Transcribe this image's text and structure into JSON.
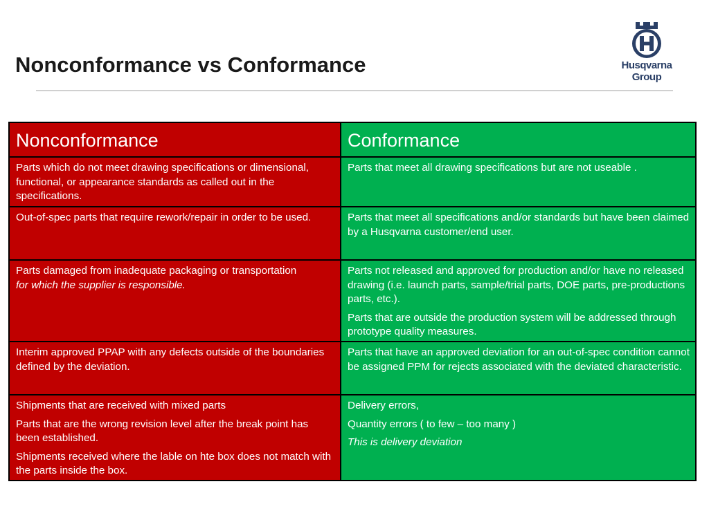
{
  "slide": {
    "title": "Nonconformance vs Conformance",
    "logo": {
      "line1": "Husqvarna",
      "line2": "Group",
      "icon": "husqvarna-crown-h-logo",
      "color": "#2a3f66"
    }
  },
  "table": {
    "headers": {
      "left": "Nonconformance",
      "right": "Conformance"
    },
    "colors": {
      "nonconformance": "#c00000",
      "conformance": "#00b050",
      "border": "#000000"
    },
    "rows": [
      {
        "left": [
          "Parts which do not meet drawing specifications or dimensional, functional, or appearance standards as called out in the specifications."
        ],
        "right": [
          "Parts that meet all drawing specifications but are not useable ."
        ]
      },
      {
        "left": [
          "Out-of-spec parts that require rework/repair in order to be used."
        ],
        "right": [
          "Parts that meet all specifications and/or standards but have been claimed by a Husqvarna customer/end user."
        ]
      },
      {
        "left_plain": "Parts damaged from inadequate packaging or transportation",
        "left_italic": "for which the supplier is responsible.",
        "right": [
          "Parts not released and approved for production and/or have no released drawing (i.e. launch parts, sample/trial parts, DOE parts, pre-productions parts, etc.).",
          "Parts that are outside the production system will be addressed through prototype quality measures."
        ]
      },
      {
        "left": [
          "Interim approved PPAP with any defects outside of the boundaries defined by the deviation."
        ],
        "right": [
          "Parts that have an approved deviation for an out-of-spec condition cannot be assigned PPM for rejects associated with the deviated characteristic."
        ]
      },
      {
        "left": [
          "Shipments that are received with mixed parts",
          "Parts that are the wrong revision level after the break point has been established.",
          "Shipments received where the lable on hte box does not match with the parts inside the box."
        ],
        "right": [
          "Delivery errors,",
          "Quantity errors ( to few – too many )"
        ],
        "right_italic": "This is delivery deviation"
      }
    ]
  }
}
